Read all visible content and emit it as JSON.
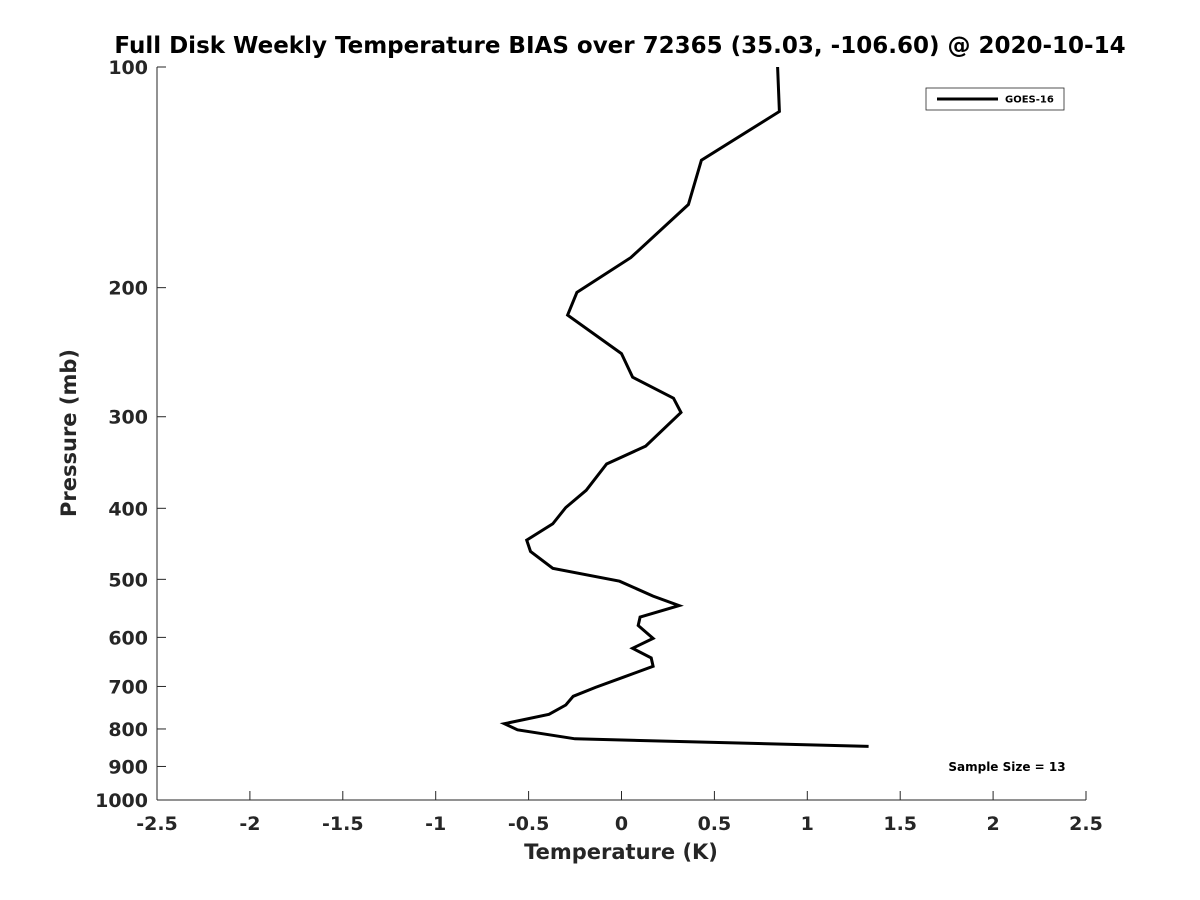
{
  "chart_data": {
    "type": "line",
    "title": "Full Disk Weekly Temperature BIAS over 72365 (35.03, -106.60) @ 2020-10-14",
    "xlabel": "Temperature (K)",
    "ylabel": "Pressure (mb)",
    "xlim": [
      -2.5,
      2.5
    ],
    "ylim": [
      100,
      1000
    ],
    "y_scale": "log",
    "y_reversed": true,
    "x_ticks": [
      "-2.5",
      "-2",
      "-1.5",
      "-1",
      "-0.5",
      "0",
      "0.5",
      "1",
      "1.5",
      "2",
      "2.5"
    ],
    "y_ticks": [
      "100",
      "200",
      "300",
      "400",
      "500",
      "600",
      "700",
      "800",
      "900",
      "1000"
    ],
    "grid": false,
    "legend_position": "top-right",
    "series": [
      {
        "name": "GOES-16",
        "color": "#000000",
        "x": [
          0.84,
          0.85,
          0.43,
          0.36,
          0.05,
          -0.24,
          -0.29,
          0.0,
          0.06,
          0.28,
          0.32,
          0.13,
          -0.08,
          -0.19,
          -0.3,
          -0.37,
          -0.51,
          -0.49,
          -0.37,
          -0.01,
          0.17,
          0.31,
          0.1,
          0.09,
          0.17,
          0.06,
          0.16,
          0.17,
          0.01,
          -0.14,
          -0.26,
          -0.3,
          -0.39,
          -0.63,
          -0.56,
          -0.25,
          1.33
        ],
        "y": [
          100,
          115,
          134,
          154,
          182,
          203,
          218,
          246,
          265,
          283,
          296,
          329,
          348,
          378,
          399,
          420,
          442,
          458,
          483,
          503,
          527,
          543,
          563,
          578,
          602,
          621,
          640,
          657,
          680,
          702,
          722,
          742,
          764,
          787,
          802,
          825,
          845
        ]
      }
    ],
    "annotation": "Sample Size = 13"
  }
}
